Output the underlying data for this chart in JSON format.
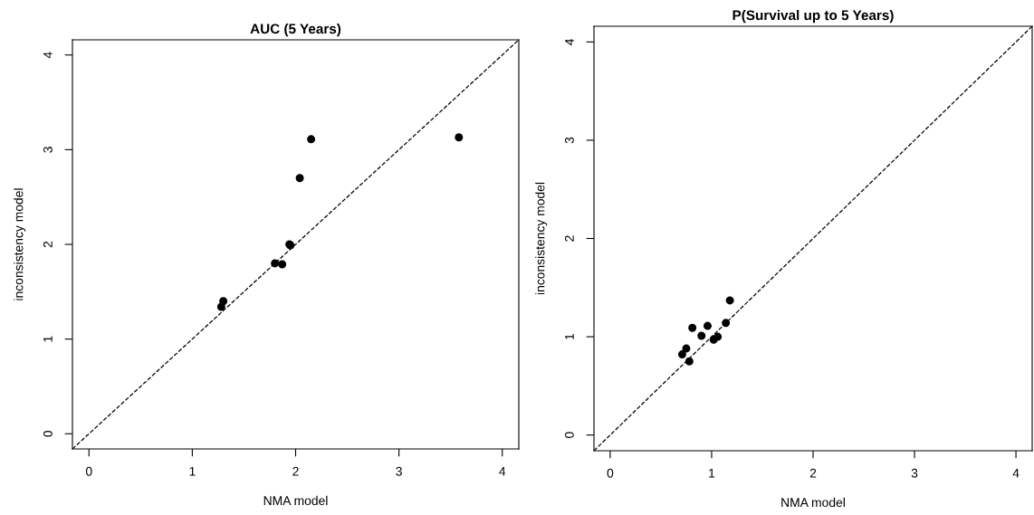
{
  "chart_data": [
    {
      "type": "scatter",
      "title": "AUC (5 Years)",
      "xlabel": "NMA model",
      "ylabel": "inconsistency model",
      "xlim": [
        -0.16,
        4.16
      ],
      "ylim": [
        -0.16,
        4.16
      ],
      "xticks": [
        0,
        1,
        2,
        3,
        4
      ],
      "yticks": [
        0,
        1,
        2,
        3,
        4
      ],
      "grid": false,
      "marker": "circle",
      "series": [
        {
          "color": "#000000",
          "x": [
            1.28,
            1.3,
            1.8,
            1.87,
            1.94,
            1.95,
            2.04,
            2.15,
            3.58
          ],
          "values": [
            1.34,
            1.4,
            1.8,
            1.79,
            2.0,
            1.99,
            2.7,
            3.11,
            3.13
          ]
        },
        {
          "type": "line",
          "color": "#000000",
          "line_style": "dashed",
          "marker": "none",
          "x": [
            -0.16,
            4.16
          ],
          "values": [
            -0.16,
            4.16
          ]
        }
      ]
    },
    {
      "type": "scatter",
      "title": "P(Survival up to 5 Years)",
      "xlabel": "NMA model",
      "ylabel": "inconsistency model",
      "xlim": [
        -0.16,
        4.16
      ],
      "ylim": [
        -0.16,
        4.16
      ],
      "xticks": [
        0,
        1,
        2,
        3,
        4
      ],
      "yticks": [
        0,
        1,
        2,
        3,
        4
      ],
      "grid": false,
      "marker": "circle",
      "series": [
        {
          "color": "#000000",
          "x": [
            0.71,
            0.75,
            0.78,
            0.81,
            0.9,
            0.96,
            1.02,
            1.06,
            1.14,
            1.18
          ],
          "values": [
            0.82,
            0.88,
            0.75,
            1.09,
            1.01,
            1.11,
            0.97,
            1.0,
            1.14,
            1.37
          ]
        },
        {
          "type": "line",
          "color": "#000000",
          "line_style": "dashed",
          "marker": "none",
          "x": [
            -0.16,
            4.16
          ],
          "values": [
            -0.16,
            4.16
          ]
        }
      ]
    }
  ]
}
